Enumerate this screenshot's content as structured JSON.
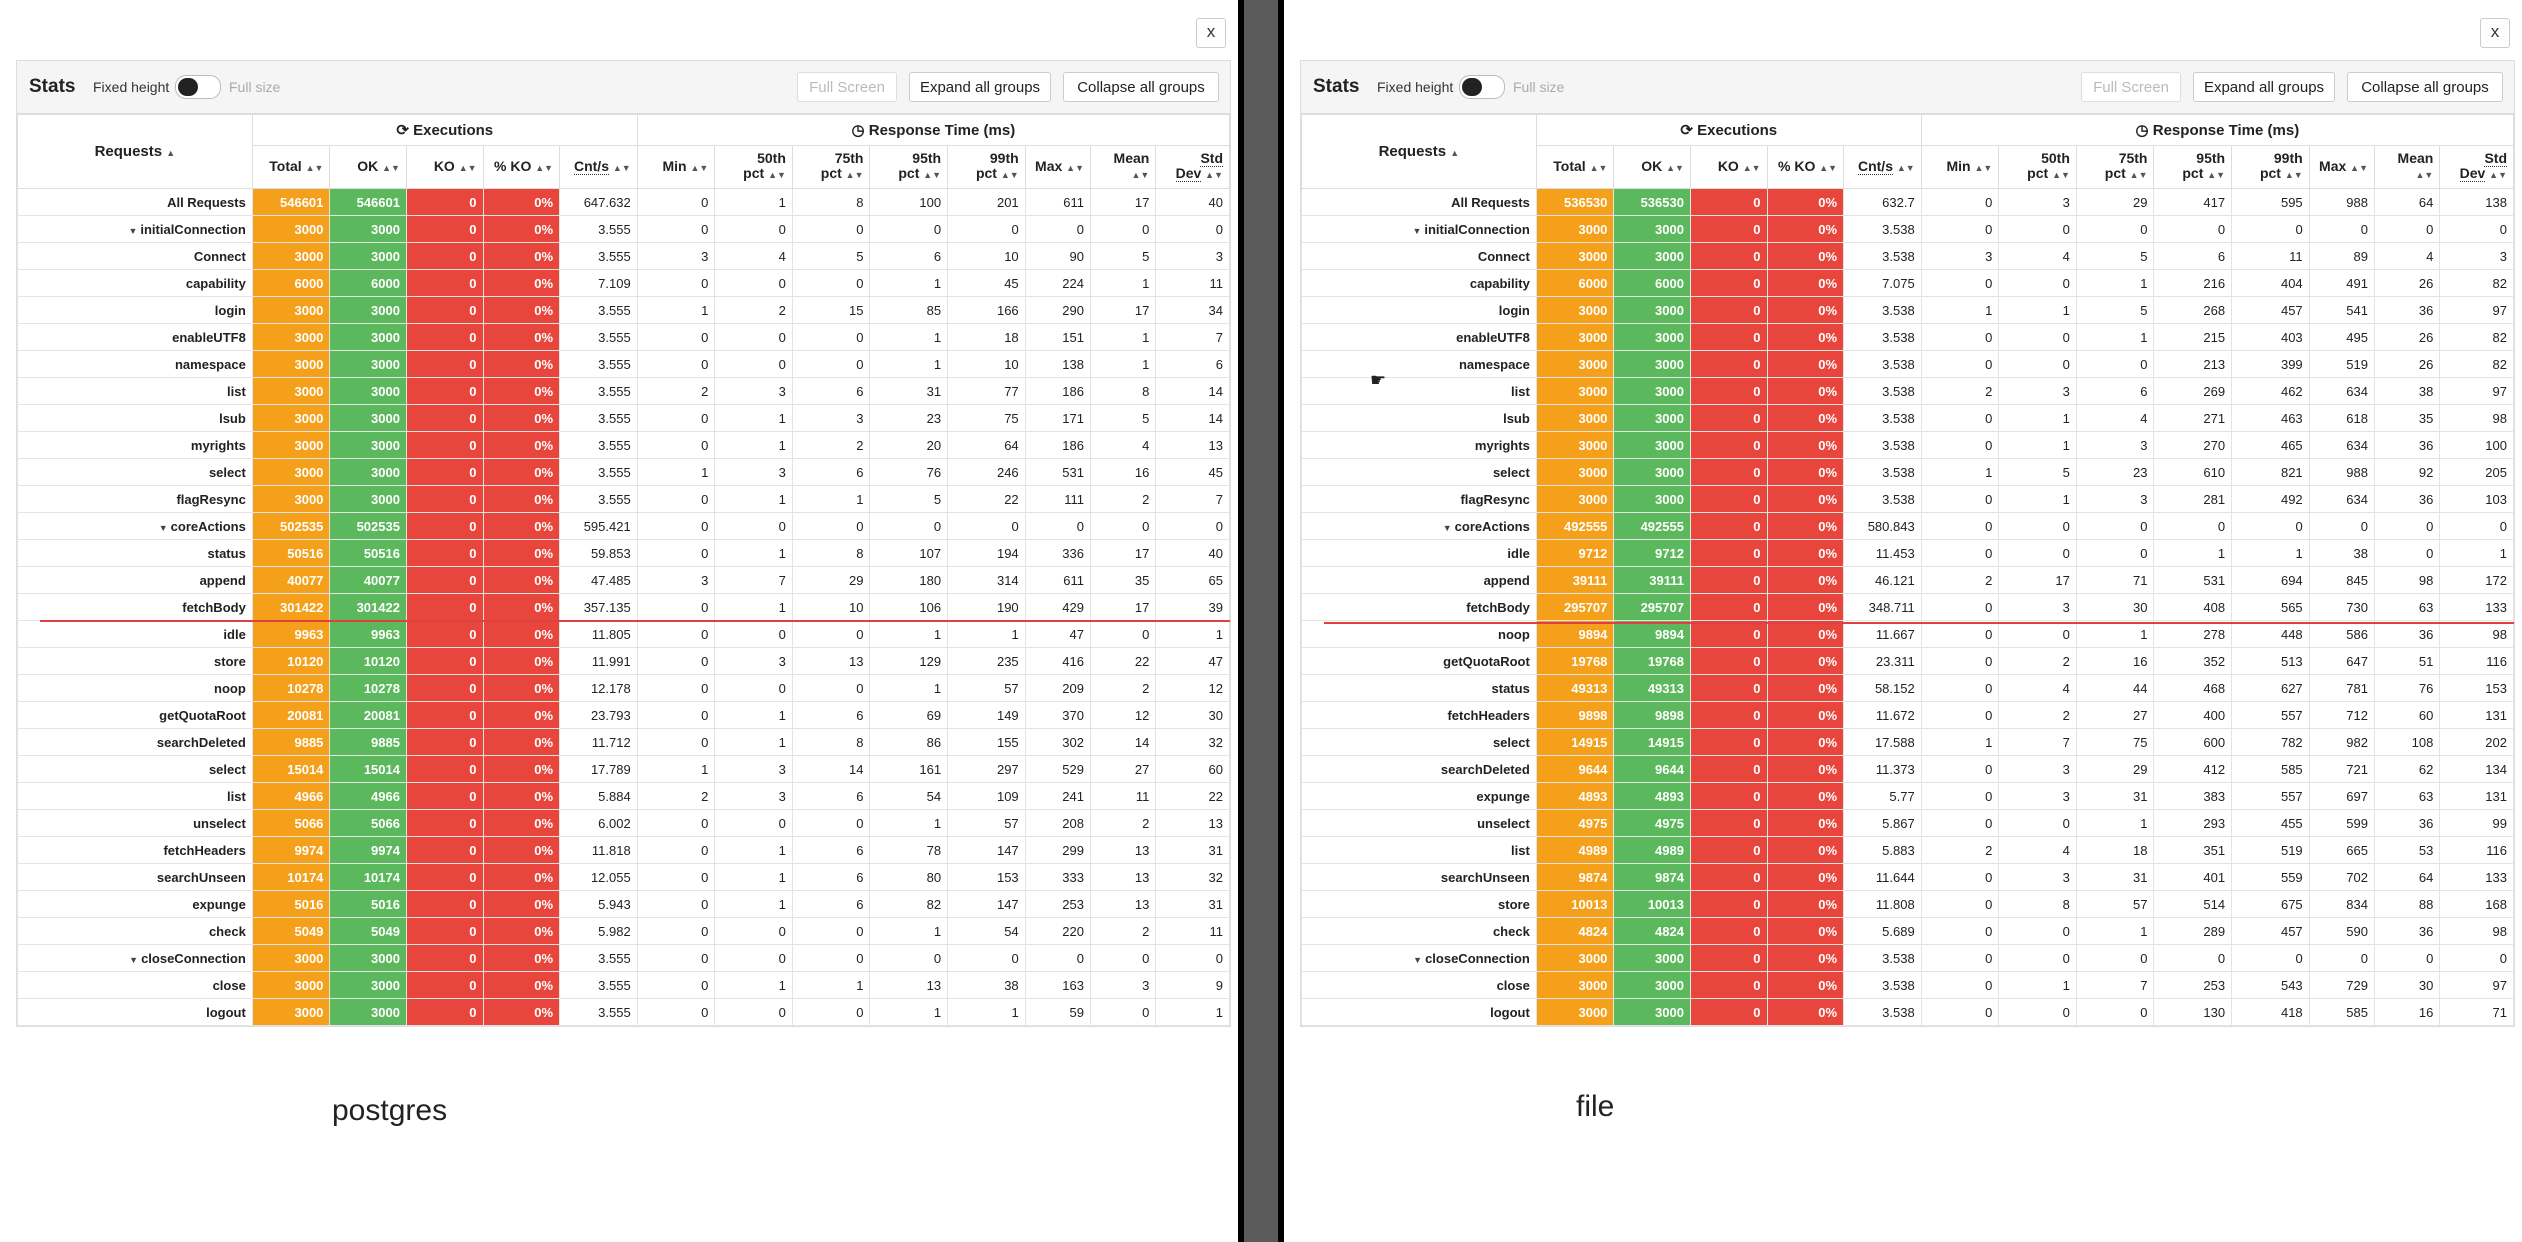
{
  "headers": {
    "title": "Stats",
    "fixed_height": "Fixed height",
    "full_size": "Full size",
    "full_screen": "Full Screen",
    "expand": "Expand all groups",
    "collapse": "Collapse all groups",
    "requests": "Requests",
    "executions": "Executions",
    "response_time": "Response Time (ms)",
    "total": "Total",
    "ok": "OK",
    "ko": "KO",
    "pko": "% KO",
    "cnt": "Cnt/s",
    "min": "Min",
    "p50a": "50th",
    "p75a": "75th",
    "p95a": "95th",
    "p99a": "99th",
    "pct": "pct",
    "max": "Max",
    "mean": "Mean",
    "stda": "Std",
    "stdb": "Dev",
    "close": "x"
  },
  "colors": {
    "total": "#f5a01a",
    "ok": "#5cb85c",
    "ko": "#e8453c"
  },
  "left": {
    "caption": "postgres",
    "rows": [
      [
        "All Requests",
        "546601",
        "546601",
        "0",
        "0%",
        "647.632",
        "0",
        "1",
        "8",
        "100",
        "201",
        "611",
        "17",
        "40"
      ],
      [
        "initialConnection",
        "3000",
        "3000",
        "0",
        "0%",
        "3.555",
        "0",
        "0",
        "0",
        "0",
        "0",
        "0",
        "0",
        "0"
      ],
      [
        "Connect",
        "3000",
        "3000",
        "0",
        "0%",
        "3.555",
        "3",
        "4",
        "5",
        "6",
        "10",
        "90",
        "5",
        "3"
      ],
      [
        "capability",
        "6000",
        "6000",
        "0",
        "0%",
        "7.109",
        "0",
        "0",
        "0",
        "1",
        "45",
        "224",
        "1",
        "11"
      ],
      [
        "login",
        "3000",
        "3000",
        "0",
        "0%",
        "3.555",
        "1",
        "2",
        "15",
        "85",
        "166",
        "290",
        "17",
        "34"
      ],
      [
        "enableUTF8",
        "3000",
        "3000",
        "0",
        "0%",
        "3.555",
        "0",
        "0",
        "0",
        "1",
        "18",
        "151",
        "1",
        "7"
      ],
      [
        "namespace",
        "3000",
        "3000",
        "0",
        "0%",
        "3.555",
        "0",
        "0",
        "0",
        "1",
        "10",
        "138",
        "1",
        "6"
      ],
      [
        "list",
        "3000",
        "3000",
        "0",
        "0%",
        "3.555",
        "2",
        "3",
        "6",
        "31",
        "77",
        "186",
        "8",
        "14"
      ],
      [
        "lsub",
        "3000",
        "3000",
        "0",
        "0%",
        "3.555",
        "0",
        "1",
        "3",
        "23",
        "75",
        "171",
        "5",
        "14"
      ],
      [
        "myrights",
        "3000",
        "3000",
        "0",
        "0%",
        "3.555",
        "0",
        "1",
        "2",
        "20",
        "64",
        "186",
        "4",
        "13"
      ],
      [
        "select",
        "3000",
        "3000",
        "0",
        "0%",
        "3.555",
        "1",
        "3",
        "6",
        "76",
        "246",
        "531",
        "16",
        "45"
      ],
      [
        "flagResync",
        "3000",
        "3000",
        "0",
        "0%",
        "3.555",
        "0",
        "1",
        "1",
        "5",
        "22",
        "111",
        "2",
        "7"
      ],
      [
        "coreActions",
        "502535",
        "502535",
        "0",
        "0%",
        "595.421",
        "0",
        "0",
        "0",
        "0",
        "0",
        "0",
        "0",
        "0"
      ],
      [
        "status",
        "50516",
        "50516",
        "0",
        "0%",
        "59.853",
        "0",
        "1",
        "8",
        "107",
        "194",
        "336",
        "17",
        "40"
      ],
      [
        "append",
        "40077",
        "40077",
        "0",
        "0%",
        "47.485",
        "3",
        "7",
        "29",
        "180",
        "314",
        "611",
        "35",
        "65"
      ],
      [
        "fetchBody",
        "301422",
        "301422",
        "0",
        "0%",
        "357.135",
        "0",
        "1",
        "10",
        "106",
        "190",
        "429",
        "17",
        "39"
      ],
      [
        "idle",
        "9963",
        "9963",
        "0",
        "0%",
        "11.805",
        "0",
        "0",
        "0",
        "1",
        "1",
        "47",
        "0",
        "1"
      ],
      [
        "store",
        "10120",
        "10120",
        "0",
        "0%",
        "11.991",
        "0",
        "3",
        "13",
        "129",
        "235",
        "416",
        "22",
        "47"
      ],
      [
        "noop",
        "10278",
        "10278",
        "0",
        "0%",
        "12.178",
        "0",
        "0",
        "0",
        "1",
        "57",
        "209",
        "2",
        "12"
      ],
      [
        "getQuotaRoot",
        "20081",
        "20081",
        "0",
        "0%",
        "23.793",
        "0",
        "1",
        "6",
        "69",
        "149",
        "370",
        "12",
        "30"
      ],
      [
        "searchDeleted",
        "9885",
        "9885",
        "0",
        "0%",
        "11.712",
        "0",
        "1",
        "8",
        "86",
        "155",
        "302",
        "14",
        "32"
      ],
      [
        "select",
        "15014",
        "15014",
        "0",
        "0%",
        "17.789",
        "1",
        "3",
        "14",
        "161",
        "297",
        "529",
        "27",
        "60"
      ],
      [
        "list",
        "4966",
        "4966",
        "0",
        "0%",
        "5.884",
        "2",
        "3",
        "6",
        "54",
        "109",
        "241",
        "11",
        "22"
      ],
      [
        "unselect",
        "5066",
        "5066",
        "0",
        "0%",
        "6.002",
        "0",
        "0",
        "0",
        "1",
        "57",
        "208",
        "2",
        "13"
      ],
      [
        "fetchHeaders",
        "9974",
        "9974",
        "0",
        "0%",
        "11.818",
        "0",
        "1",
        "6",
        "78",
        "147",
        "299",
        "13",
        "31"
      ],
      [
        "searchUnseen",
        "10174",
        "10174",
        "0",
        "0%",
        "12.055",
        "0",
        "1",
        "6",
        "80",
        "153",
        "333",
        "13",
        "32"
      ],
      [
        "expunge",
        "5016",
        "5016",
        "0",
        "0%",
        "5.943",
        "0",
        "1",
        "6",
        "82",
        "147",
        "253",
        "13",
        "31"
      ],
      [
        "check",
        "5049",
        "5049",
        "0",
        "0%",
        "5.982",
        "0",
        "0",
        "0",
        "1",
        "54",
        "220",
        "2",
        "11"
      ],
      [
        "closeConnection",
        "3000",
        "3000",
        "0",
        "0%",
        "3.555",
        "0",
        "0",
        "0",
        "0",
        "0",
        "0",
        "0",
        "0"
      ],
      [
        "close",
        "3000",
        "3000",
        "0",
        "0%",
        "3.555",
        "0",
        "1",
        "1",
        "13",
        "38",
        "163",
        "3",
        "9"
      ],
      [
        "logout",
        "3000",
        "3000",
        "0",
        "0%",
        "3.555",
        "0",
        "0",
        "0",
        "1",
        "1",
        "59",
        "0",
        "1"
      ]
    ]
  },
  "right": {
    "caption": "file",
    "rows": [
      [
        "All Requests",
        "536530",
        "536530",
        "0",
        "0%",
        "632.7",
        "0",
        "3",
        "29",
        "417",
        "595",
        "988",
        "64",
        "138"
      ],
      [
        "initialConnection",
        "3000",
        "3000",
        "0",
        "0%",
        "3.538",
        "0",
        "0",
        "0",
        "0",
        "0",
        "0",
        "0",
        "0"
      ],
      [
        "Connect",
        "3000",
        "3000",
        "0",
        "0%",
        "3.538",
        "3",
        "4",
        "5",
        "6",
        "11",
        "89",
        "4",
        "3"
      ],
      [
        "capability",
        "6000",
        "6000",
        "0",
        "0%",
        "7.075",
        "0",
        "0",
        "1",
        "216",
        "404",
        "491",
        "26",
        "82"
      ],
      [
        "login",
        "3000",
        "3000",
        "0",
        "0%",
        "3.538",
        "1",
        "1",
        "5",
        "268",
        "457",
        "541",
        "36",
        "97"
      ],
      [
        "enableUTF8",
        "3000",
        "3000",
        "0",
        "0%",
        "3.538",
        "0",
        "0",
        "1",
        "215",
        "403",
        "495",
        "26",
        "82"
      ],
      [
        "namespace",
        "3000",
        "3000",
        "0",
        "0%",
        "3.538",
        "0",
        "0",
        "0",
        "213",
        "399",
        "519",
        "26",
        "82"
      ],
      [
        "list",
        "3000",
        "3000",
        "0",
        "0%",
        "3.538",
        "2",
        "3",
        "6",
        "269",
        "462",
        "634",
        "38",
        "97"
      ],
      [
        "lsub",
        "3000",
        "3000",
        "0",
        "0%",
        "3.538",
        "0",
        "1",
        "4",
        "271",
        "463",
        "618",
        "35",
        "98"
      ],
      [
        "myrights",
        "3000",
        "3000",
        "0",
        "0%",
        "3.538",
        "0",
        "1",
        "3",
        "270",
        "465",
        "634",
        "36",
        "100"
      ],
      [
        "select",
        "3000",
        "3000",
        "0",
        "0%",
        "3.538",
        "1",
        "5",
        "23",
        "610",
        "821",
        "988",
        "92",
        "205"
      ],
      [
        "flagResync",
        "3000",
        "3000",
        "0",
        "0%",
        "3.538",
        "0",
        "1",
        "3",
        "281",
        "492",
        "634",
        "36",
        "103"
      ],
      [
        "coreActions",
        "492555",
        "492555",
        "0",
        "0%",
        "580.843",
        "0",
        "0",
        "0",
        "0",
        "0",
        "0",
        "0",
        "0"
      ],
      [
        "idle",
        "9712",
        "9712",
        "0",
        "0%",
        "11.453",
        "0",
        "0",
        "0",
        "1",
        "1",
        "38",
        "0",
        "1"
      ],
      [
        "append",
        "39111",
        "39111",
        "0",
        "0%",
        "46.121",
        "2",
        "17",
        "71",
        "531",
        "694",
        "845",
        "98",
        "172"
      ],
      [
        "fetchBody",
        "295707",
        "295707",
        "0",
        "0%",
        "348.711",
        "0",
        "3",
        "30",
        "408",
        "565",
        "730",
        "63",
        "133"
      ],
      [
        "noop",
        "9894",
        "9894",
        "0",
        "0%",
        "11.667",
        "0",
        "0",
        "1",
        "278",
        "448",
        "586",
        "36",
        "98"
      ],
      [
        "getQuotaRoot",
        "19768",
        "19768",
        "0",
        "0%",
        "23.311",
        "0",
        "2",
        "16",
        "352",
        "513",
        "647",
        "51",
        "116"
      ],
      [
        "status",
        "49313",
        "49313",
        "0",
        "0%",
        "58.152",
        "0",
        "4",
        "44",
        "468",
        "627",
        "781",
        "76",
        "153"
      ],
      [
        "fetchHeaders",
        "9898",
        "9898",
        "0",
        "0%",
        "11.672",
        "0",
        "2",
        "27",
        "400",
        "557",
        "712",
        "60",
        "131"
      ],
      [
        "select",
        "14915",
        "14915",
        "0",
        "0%",
        "17.588",
        "1",
        "7",
        "75",
        "600",
        "782",
        "982",
        "108",
        "202"
      ],
      [
        "searchDeleted",
        "9644",
        "9644",
        "0",
        "0%",
        "11.373",
        "0",
        "3",
        "29",
        "412",
        "585",
        "721",
        "62",
        "134"
      ],
      [
        "expunge",
        "4893",
        "4893",
        "0",
        "0%",
        "5.77",
        "0",
        "3",
        "31",
        "383",
        "557",
        "697",
        "63",
        "131"
      ],
      [
        "unselect",
        "4975",
        "4975",
        "0",
        "0%",
        "5.867",
        "0",
        "0",
        "1",
        "293",
        "455",
        "599",
        "36",
        "99"
      ],
      [
        "list",
        "4989",
        "4989",
        "0",
        "0%",
        "5.883",
        "2",
        "4",
        "18",
        "351",
        "519",
        "665",
        "53",
        "116"
      ],
      [
        "searchUnseen",
        "9874",
        "9874",
        "0",
        "0%",
        "11.644",
        "0",
        "3",
        "31",
        "401",
        "559",
        "702",
        "64",
        "133"
      ],
      [
        "store",
        "10013",
        "10013",
        "0",
        "0%",
        "11.808",
        "0",
        "8",
        "57",
        "514",
        "675",
        "834",
        "88",
        "168"
      ],
      [
        "check",
        "4824",
        "4824",
        "0",
        "0%",
        "5.689",
        "0",
        "0",
        "1",
        "289",
        "457",
        "590",
        "36",
        "98"
      ],
      [
        "closeConnection",
        "3000",
        "3000",
        "0",
        "0%",
        "3.538",
        "0",
        "0",
        "0",
        "0",
        "0",
        "0",
        "0",
        "0"
      ],
      [
        "close",
        "3000",
        "3000",
        "0",
        "0%",
        "3.538",
        "0",
        "1",
        "7",
        "253",
        "543",
        "729",
        "30",
        "97"
      ],
      [
        "logout",
        "3000",
        "3000",
        "0",
        "0%",
        "3.538",
        "0",
        "0",
        "0",
        "130",
        "418",
        "585",
        "16",
        "71"
      ]
    ]
  }
}
